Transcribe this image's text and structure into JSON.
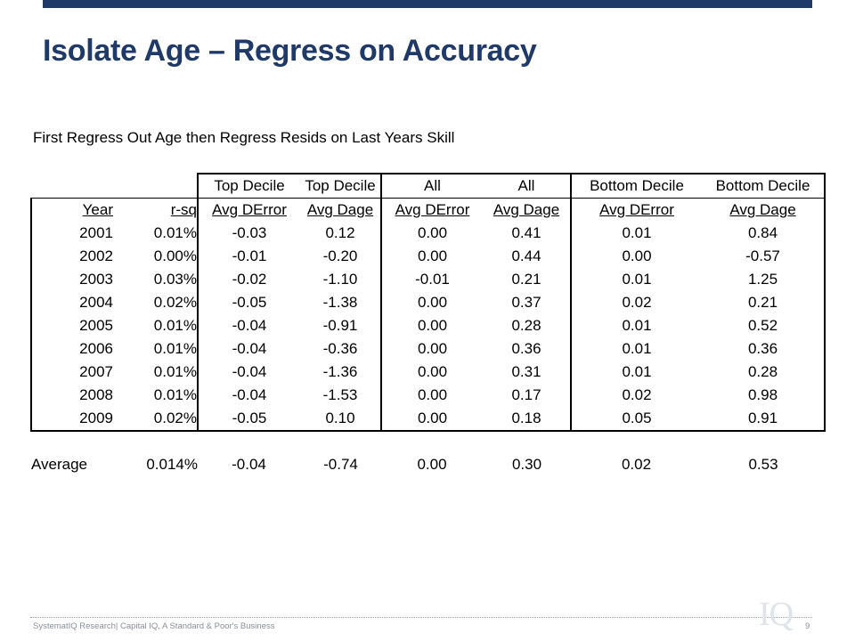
{
  "title": "Isolate Age – Regress on Accuracy",
  "subtitle": "First Regress Out Age then Regress Resids on Last Years Skill",
  "table": {
    "group_headers": [
      "Top Decile",
      "Top Decile",
      "All",
      "All",
      "Bottom Decile",
      "Bottom Decile"
    ],
    "col_headers": [
      "Year",
      "r-sq",
      "Avg DError",
      "Avg Dage",
      "Avg DError",
      "Avg Dage",
      "Avg DError",
      "Avg Dage"
    ],
    "rows": [
      [
        "2001",
        "0.01%",
        "-0.03",
        "0.12",
        "0.00",
        "0.41",
        "0.01",
        "0.84"
      ],
      [
        "2002",
        "0.00%",
        "-0.01",
        "-0.20",
        "0.00",
        "0.44",
        "0.00",
        "-0.57"
      ],
      [
        "2003",
        "0.03%",
        "-0.02",
        "-1.10",
        "-0.01",
        "0.21",
        "0.01",
        "1.25"
      ],
      [
        "2004",
        "0.02%",
        "-0.05",
        "-1.38",
        "0.00",
        "0.37",
        "0.02",
        "0.21"
      ],
      [
        "2005",
        "0.01%",
        "-0.04",
        "-0.91",
        "0.00",
        "0.28",
        "0.01",
        "0.52"
      ],
      [
        "2006",
        "0.01%",
        "-0.04",
        "-0.36",
        "0.00",
        "0.36",
        "0.01",
        "0.36"
      ],
      [
        "2007",
        "0.01%",
        "-0.04",
        "-1.36",
        "0.00",
        "0.31",
        "0.01",
        "0.28"
      ],
      [
        "2008",
        "0.01%",
        "-0.04",
        "-1.53",
        "0.00",
        "0.17",
        "0.02",
        "0.98"
      ],
      [
        "2009",
        "0.02%",
        "-0.05",
        "0.10",
        "0.00",
        "0.18",
        "0.05",
        "0.91"
      ]
    ],
    "average": [
      "Average",
      "0.014%",
      "-0.04",
      "-0.74",
      "0.00",
      "0.30",
      "0.02",
      "0.53"
    ]
  },
  "footer": {
    "text": "SystematIQ Research| Capital IQ, A Standard & Poor's Business",
    "page_number": "9",
    "logo_text": "IQ"
  },
  "colors": {
    "accent": "#1f3a68",
    "footer_text": "#8a8f99"
  }
}
